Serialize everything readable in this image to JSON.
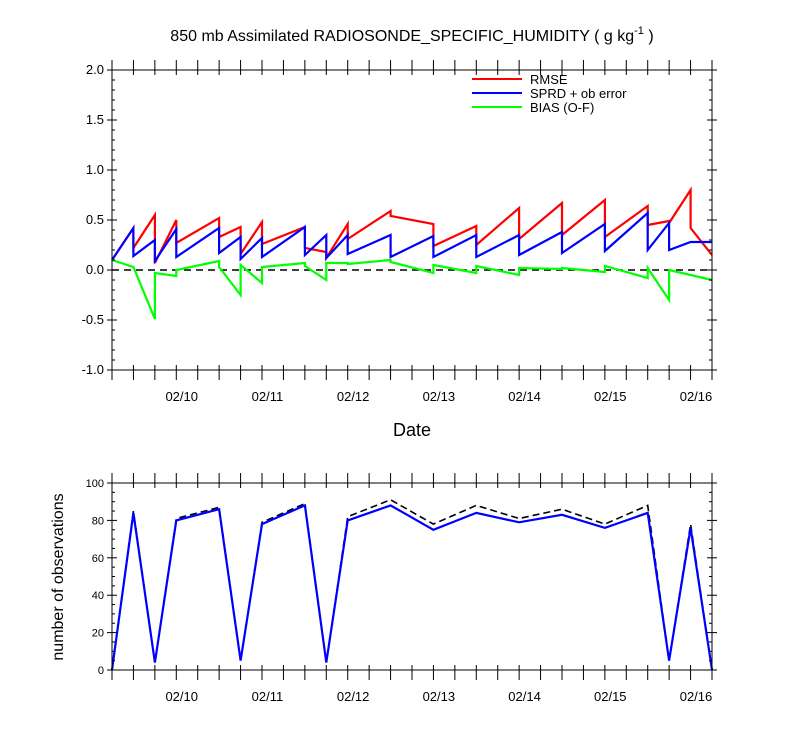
{
  "title": {
    "main": "850 mb Assimilated RADIOSONDE_SPECIFIC_HUMIDITY ( g kg",
    "exp": "-1",
    "close": " )"
  },
  "top_xlabel": "Date",
  "bottom_ylabel": "number of observations",
  "colors": {
    "rmse": "#ff0000",
    "sprd": "#0000ff",
    "bias": "#00ff00",
    "obs_used": "#0000ff",
    "obs_total": "#000000",
    "zero_line": "#000000"
  },
  "chart_data": [
    {
      "type": "line",
      "title": "850 mb Assimilated RADIOSONDE_SPECIFIC_HUMIDITY ( g kg-1 )",
      "xlabel": "Date",
      "ylabel": "",
      "xlim": [
        0,
        14
      ],
      "ylim": [
        -1.0,
        2.0
      ],
      "yticks": [
        -1.0,
        -0.5,
        0.0,
        0.5,
        1.0,
        1.5,
        2.0
      ],
      "ytick_labels": [
        "-1.0",
        "-0.5",
        "0.0",
        "0.5",
        "1.0",
        "1.5",
        "2.0"
      ],
      "xticks": [
        2,
        4,
        6,
        8,
        10,
        12,
        14
      ],
      "xtick_labels": [
        "02/10",
        "02/11",
        "02/12",
        "02/13",
        "02/14",
        "02/15",
        "02/16"
      ],
      "zero_line": true,
      "legend": "top-right",
      "series": [
        {
          "name": "RMSE",
          "color": "#ff0000",
          "x": [
            0,
            0.5,
            0.5,
            1,
            1,
            1.5,
            1.5,
            2.5,
            2.5,
            3,
            3,
            3.5,
            3.5,
            4.5,
            4.5,
            5,
            5,
            5.5,
            5.5,
            6.5,
            6.5,
            7.5,
            7.5,
            8.5,
            8.5,
            9.5,
            9.5,
            10.5,
            10.5,
            11.5,
            11.5,
            12.5,
            12.5,
            13,
            13,
            13.5,
            13.5,
            14
          ],
          "y": [
            0.1,
            0.42,
            0.22,
            0.55,
            0.07,
            0.5,
            0.27,
            0.52,
            0.33,
            0.43,
            0.16,
            0.48,
            0.26,
            0.43,
            0.22,
            0.18,
            0.12,
            0.46,
            0.31,
            0.59,
            0.54,
            0.46,
            0.24,
            0.44,
            0.25,
            0.62,
            0.31,
            0.67,
            0.35,
            0.7,
            0.33,
            0.64,
            0.45,
            0.49,
            0.47,
            0.8,
            0.42,
            0.15
          ]
        },
        {
          "name": "SPRD + ob error",
          "color": "#0000ff",
          "x": [
            0,
            0.5,
            0.5,
            1,
            1,
            1.5,
            1.5,
            2.5,
            2.5,
            3,
            3,
            3.5,
            3.5,
            4.5,
            4.5,
            5,
            5,
            5.5,
            5.5,
            6.5,
            6.5,
            7.5,
            7.5,
            8.5,
            8.5,
            9.5,
            9.5,
            10.5,
            10.5,
            11.5,
            11.5,
            12.5,
            12.5,
            13,
            13,
            13.5,
            13.5,
            14
          ],
          "y": [
            0.1,
            0.42,
            0.14,
            0.3,
            0.09,
            0.41,
            0.13,
            0.42,
            0.17,
            0.33,
            0.11,
            0.32,
            0.13,
            0.43,
            0.15,
            0.35,
            0.12,
            0.35,
            0.16,
            0.35,
            0.13,
            0.34,
            0.13,
            0.35,
            0.13,
            0.35,
            0.15,
            0.38,
            0.17,
            0.46,
            0.19,
            0.57,
            0.2,
            0.47,
            0.2,
            0.28,
            0.28,
            0.28
          ]
        },
        {
          "name": "BIAS (O-F)",
          "color": "#00ff00",
          "x": [
            0,
            0.5,
            0.5,
            1,
            1,
            1.5,
            1.5,
            2.5,
            2.5,
            3,
            3,
            3.5,
            3.5,
            4.5,
            4.5,
            5,
            5,
            5.5,
            5.5,
            6.5,
            6.5,
            7.5,
            7.5,
            8.5,
            8.5,
            9.5,
            9.5,
            10.5,
            10.5,
            11.5,
            11.5,
            12.5,
            12.5,
            13,
            13,
            13.5,
            13.5,
            14
          ],
          "y": [
            0.1,
            0.03,
            0.03,
            -0.49,
            -0.03,
            -0.06,
            0.0,
            0.09,
            0.03,
            -0.25,
            0.05,
            -0.13,
            0.03,
            0.07,
            0.04,
            -0.1,
            0.07,
            0.07,
            0.06,
            0.1,
            0.08,
            -0.03,
            0.05,
            -0.03,
            0.04,
            -0.05,
            0.02,
            0.01,
            0.02,
            -0.02,
            0.04,
            -0.08,
            0.02,
            -0.3,
            0.0,
            -0.05,
            -0.05,
            -0.1
          ]
        }
      ]
    },
    {
      "type": "line",
      "title": "",
      "xlabel": "",
      "ylabel": "number of observations",
      "xlim": [
        0,
        14
      ],
      "ylim": [
        0,
        100
      ],
      "yticks": [
        0,
        20,
        40,
        60,
        80,
        100
      ],
      "ytick_labels": [
        "0",
        "20",
        "40",
        "60",
        "80",
        "100"
      ],
      "xticks": [
        2,
        4,
        6,
        8,
        10,
        12,
        14
      ],
      "xtick_labels": [
        "02/10",
        "02/11",
        "02/12",
        "02/13",
        "02/14",
        "02/15",
        "02/16"
      ],
      "series": [
        {
          "color": "#000000",
          "dashed": true,
          "x": [
            0,
            0.5,
            1,
            1.5,
            2.5,
            3,
            3.5,
            4.5,
            5,
            5.5,
            6.5,
            7.5,
            8.5,
            9.5,
            10.5,
            11.5,
            12.5,
            13,
            13.5,
            14
          ],
          "y": [
            0,
            85,
            4,
            81,
            87,
            5,
            79,
            89,
            4,
            82,
            91,
            78,
            88,
            81,
            86,
            78,
            88,
            5,
            78,
            0
          ]
        },
        {
          "color": "#0000ff",
          "dashed": false,
          "x": [
            0,
            0.5,
            1,
            1.5,
            2.5,
            3,
            3.5,
            4.5,
            5,
            5.5,
            6.5,
            7.5,
            8.5,
            9.5,
            10.5,
            11.5,
            12.5,
            13,
            13.5,
            14
          ],
          "y": [
            0,
            84,
            4,
            80,
            86,
            5,
            78,
            88,
            4,
            80,
            88,
            75,
            84,
            79,
            83,
            76,
            84,
            5,
            76,
            0
          ]
        }
      ]
    }
  ]
}
